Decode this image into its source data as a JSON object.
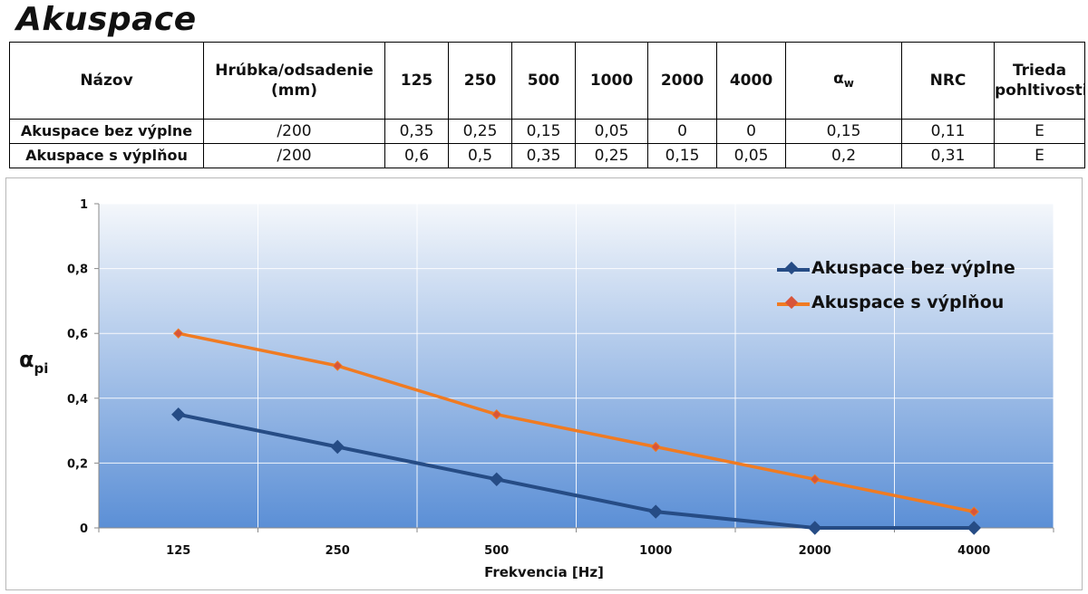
{
  "title": "Akuspace",
  "table": {
    "headers": [
      "Názov",
      "Hrúbka/odsadenie (mm)",
      "125",
      "250",
      "500",
      "1000",
      "2000",
      "4000",
      "αw",
      "NRC",
      "Trieda pohltivosti"
    ],
    "alpha_symbol": "α",
    "alpha_sub": "w",
    "rows": [
      {
        "name": "Akuspace bez výplne",
        "thickness": "/200",
        "v125": "0,35",
        "v250": "0,25",
        "v500": "0,15",
        "v1000": "0,05",
        "v2000": "0",
        "v4000": "0",
        "aw": "0,15",
        "nrc": "0,11",
        "class": "E"
      },
      {
        "name": "Akuspace s výplňou",
        "thickness": "/200",
        "v125": "0,6",
        "v250": "0,5",
        "v500": "0,35",
        "v1000": "0,25",
        "v2000": "0,15",
        "v4000": "0,05",
        "aw": "0,2",
        "nrc": "0,31",
        "class": "E"
      }
    ]
  },
  "chart_data": {
    "type": "line",
    "categories": [
      "125",
      "250",
      "500",
      "1000",
      "2000",
      "4000"
    ],
    "series": [
      {
        "name": "Akuspace bez výplne",
        "values": [
          0.35,
          0.25,
          0.15,
          0.05,
          0,
          0
        ],
        "color": "#264c85",
        "marker": "diamond"
      },
      {
        "name": "Akuspace s výplňou",
        "values": [
          0.6,
          0.5,
          0.35,
          0.25,
          0.15,
          0.05
        ],
        "color": "#f07b22",
        "marker": "diamond"
      }
    ],
    "yticks": [
      "0",
      "0,2",
      "0,4",
      "0,6",
      "0,8",
      "1"
    ],
    "ylim": [
      0,
      1
    ],
    "xlabel": "Frekvencia [Hz]",
    "ylabel_symbol": "α",
    "ylabel_sub": "pi",
    "legend_position": "top-right",
    "grid": true,
    "background_gradient": [
      "#f4f7fb",
      "#5b8fd6"
    ]
  }
}
